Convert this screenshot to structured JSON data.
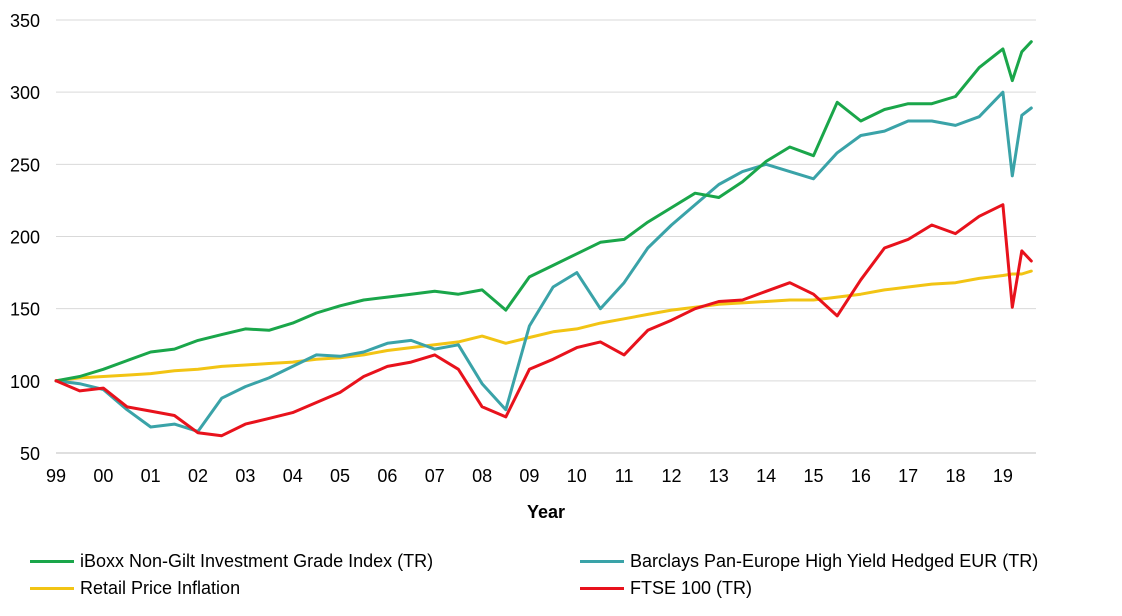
{
  "chart_data": {
    "type": "line",
    "title": "",
    "xlabel": "Year",
    "ylabel": "",
    "ylim": [
      50,
      350
    ],
    "yticks": [
      50,
      100,
      150,
      200,
      250,
      300,
      350
    ],
    "xlim": [
      1999.0,
      2019.7
    ],
    "x_tick_labels": [
      "99",
      "00",
      "01",
      "02",
      "03",
      "04",
      "05",
      "06",
      "07",
      "08",
      "09",
      "10",
      "11",
      "12",
      "13",
      "14",
      "15",
      "16",
      "17",
      "18",
      "19"
    ],
    "grid": "horizontal",
    "legend": "bottom",
    "x": [
      1999.0,
      1999.5,
      2000.0,
      2000.5,
      2001.0,
      2001.5,
      2002.0,
      2002.5,
      2003.0,
      2003.5,
      2004.0,
      2004.5,
      2005.0,
      2005.5,
      2006.0,
      2006.5,
      2007.0,
      2007.5,
      2008.0,
      2008.5,
      2009.0,
      2009.5,
      2010.0,
      2010.5,
      2011.0,
      2011.5,
      2012.0,
      2012.5,
      2013.0,
      2013.5,
      2014.0,
      2014.5,
      2015.0,
      2015.5,
      2016.0,
      2016.5,
      2017.0,
      2017.5,
      2018.0,
      2018.5,
      2019.0,
      2019.2,
      2019.4,
      2019.6
    ],
    "series": [
      {
        "name": "iBoxx Non-Gilt Investment Grade Index (TR)",
        "color": "#1aa64a",
        "values": [
          100,
          103,
          108,
          114,
          120,
          122,
          128,
          132,
          136,
          135,
          140,
          147,
          152,
          156,
          158,
          160,
          162,
          160,
          163,
          149,
          172,
          180,
          188,
          196,
          198,
          210,
          220,
          230,
          227,
          238,
          252,
          262,
          256,
          293,
          280,
          288,
          292,
          292,
          297,
          317,
          330,
          308,
          328,
          335
        ]
      },
      {
        "name": "Barclays Pan-Europe High Yield Hedged EUR (TR)",
        "color": "#3aa3a8",
        "values": [
          100,
          98,
          94,
          80,
          68,
          70,
          65,
          88,
          96,
          102,
          110,
          118,
          117,
          120,
          126,
          128,
          122,
          125,
          98,
          80,
          138,
          165,
          175,
          150,
          168,
          192,
          208,
          222,
          236,
          245,
          250,
          245,
          240,
          258,
          270,
          273,
          280,
          280,
          277,
          283,
          300,
          242,
          284,
          289
        ]
      },
      {
        "name": "Retail Price Inflation",
        "color": "#f2c414",
        "values": [
          100,
          102,
          103,
          104,
          105,
          107,
          108,
          110,
          111,
          112,
          113,
          115,
          116,
          118,
          121,
          123,
          125,
          127,
          131,
          126,
          130,
          134,
          136,
          140,
          143,
          146,
          149,
          151,
          153,
          154,
          155,
          156,
          156,
          158,
          160,
          163,
          165,
          167,
          168,
          171,
          173,
          174,
          174,
          176
        ]
      },
      {
        "name": "FTSE 100 (TR)",
        "color": "#e8121c",
        "values": [
          100,
          93,
          95,
          82,
          79,
          76,
          64,
          62,
          70,
          74,
          78,
          85,
          92,
          103,
          110,
          113,
          118,
          108,
          82,
          75,
          108,
          115,
          123,
          127,
          118,
          135,
          142,
          150,
          155,
          156,
          162,
          168,
          160,
          145,
          170,
          192,
          198,
          208,
          202,
          214,
          222,
          151,
          190,
          183
        ]
      }
    ]
  },
  "legend": {
    "items": [
      {
        "label": "iBoxx Non-Gilt Investment Grade Index (TR)",
        "color": "#1aa64a"
      },
      {
        "label": "Barclays Pan-Europe High Yield Hedged EUR (TR)",
        "color": "#3aa3a8"
      },
      {
        "label": "Retail Price Inflation",
        "color": "#f2c414"
      },
      {
        "label": "FTSE 100 (TR)",
        "color": "#e8121c"
      }
    ]
  },
  "colors": {
    "grid": "#d9d9d9",
    "axis": "#bfbfbf"
  }
}
